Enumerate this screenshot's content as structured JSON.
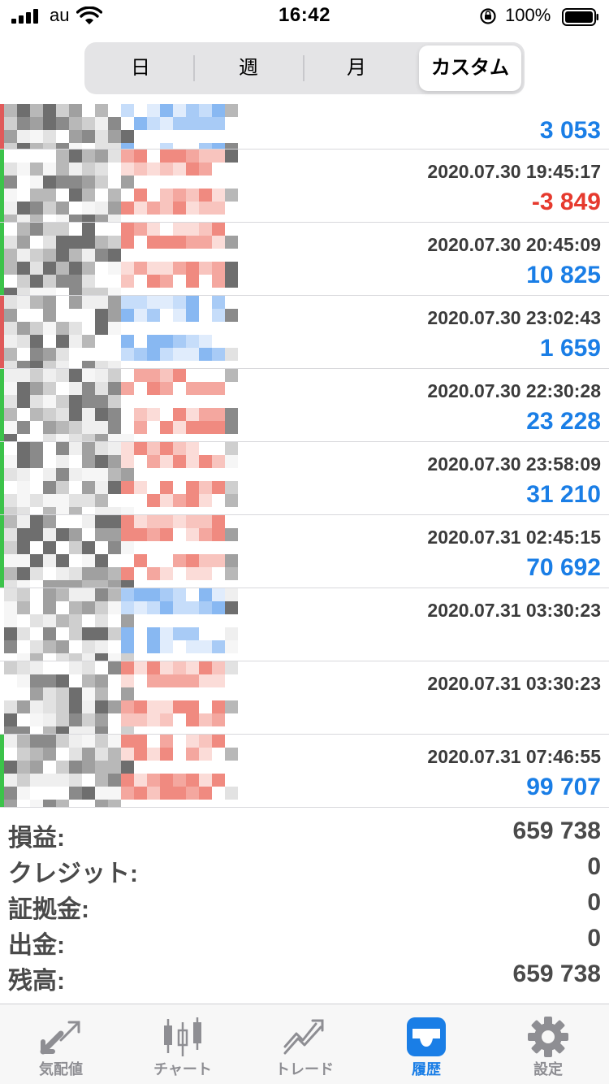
{
  "status_bar": {
    "carrier": "au",
    "time": "16:42",
    "battery": "100%"
  },
  "period_tabs": [
    {
      "label": "日",
      "selected": false
    },
    {
      "label": "週",
      "selected": false
    },
    {
      "label": "月",
      "selected": false
    },
    {
      "label": "カスタム",
      "selected": true
    }
  ],
  "colors": {
    "profit_positive": "#1a7ee6",
    "profit_negative": "#e63a2e",
    "stripe_profit": "#3cc34a",
    "stripe_loss": "#e05a5a",
    "active_tab": "#1a7ee6"
  },
  "history": [
    {
      "timestamp": "",
      "profit": "3 053",
      "profit_sign": "positive",
      "stripe": "loss"
    },
    {
      "timestamp": "2020.07.30 19:45:17",
      "profit": "-3 849",
      "profit_sign": "negative",
      "stripe": "profit"
    },
    {
      "timestamp": "2020.07.30 20:45:09",
      "profit": "10 825",
      "profit_sign": "positive",
      "stripe": "profit"
    },
    {
      "timestamp": "2020.07.30 23:02:43",
      "profit": "1 659",
      "profit_sign": "positive",
      "stripe": "loss"
    },
    {
      "timestamp": "2020.07.30 22:30:28",
      "profit": "23 228",
      "profit_sign": "positive",
      "stripe": "profit"
    },
    {
      "timestamp": "2020.07.30 23:58:09",
      "profit": "31 210",
      "profit_sign": "positive",
      "stripe": "profit"
    },
    {
      "timestamp": "2020.07.31 02:45:15",
      "profit": "70 692",
      "profit_sign": "positive",
      "stripe": "profit"
    },
    {
      "timestamp": "2020.07.31 03:30:23",
      "profit": "",
      "profit_sign": "none",
      "stripe": "none"
    },
    {
      "timestamp": "2020.07.31 03:30:23",
      "profit": "",
      "profit_sign": "none",
      "stripe": "none"
    },
    {
      "timestamp": "2020.07.31 07:46:55",
      "profit": "99 707",
      "profit_sign": "positive",
      "stripe": "profit"
    }
  ],
  "summary": [
    {
      "label": "損益:",
      "value": "659 738"
    },
    {
      "label": "クレジット:",
      "value": "0"
    },
    {
      "label": "証拠金:",
      "value": "0"
    },
    {
      "label": "出金:",
      "value": "0"
    },
    {
      "label": "残高:",
      "value": "659 738"
    }
  ],
  "bottom_tabs": [
    {
      "label": "気配値",
      "icon": "quotes-arrows-icon",
      "active": false
    },
    {
      "label": "チャート",
      "icon": "candlestick-chart-icon",
      "active": false
    },
    {
      "label": "トレード",
      "icon": "trade-line-icon",
      "active": false
    },
    {
      "label": "履歴",
      "icon": "history-tray-icon",
      "active": true
    },
    {
      "label": "設定",
      "icon": "gear-icon",
      "active": false
    }
  ]
}
